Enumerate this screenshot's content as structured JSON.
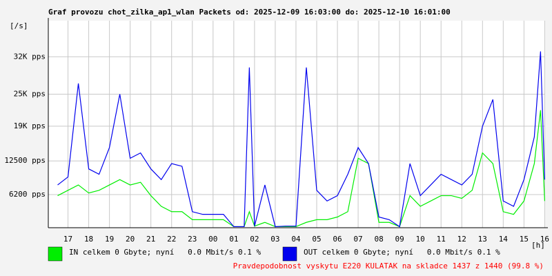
{
  "chart_data": {
    "type": "line",
    "title": "Graf provozu chot_zilka_ap1_wlan Packets od: 2025-12-09 16:03:00 do: 2025-12-10 16:01:00",
    "y_unit": "[/s]",
    "x_unit": "[h]",
    "footer": "Pravdepodobnost vyskytu E220 KULATAK na skladce 1437 z 1440 (99.8 %)",
    "grid": true,
    "xlim": [
      16.05,
      40.02
    ],
    "xticks": [
      17,
      18,
      19,
      20,
      21,
      22,
      23,
      {
        "value": 24,
        "label": "00"
      },
      {
        "value": 25,
        "label": "01"
      },
      {
        "value": 26,
        "label": "02"
      },
      {
        "value": 27,
        "label": "03"
      },
      {
        "value": 28,
        "label": "04"
      },
      {
        "value": 29,
        "label": "05"
      },
      {
        "value": 30,
        "label": "06"
      },
      {
        "value": 31,
        "label": "07"
      },
      {
        "value": 32,
        "label": "08"
      },
      {
        "value": 33,
        "label": "09"
      },
      {
        "value": 34,
        "label": "10"
      },
      {
        "value": 35,
        "label": "11"
      },
      {
        "value": 36,
        "label": "12"
      },
      {
        "value": 37,
        "label": "13"
      },
      {
        "value": 38,
        "label": "14"
      },
      {
        "value": 39,
        "label": "15"
      },
      {
        "value": 40,
        "label": "16"
      }
    ],
    "ylim": [
      0,
      38750
    ],
    "yticks": [
      {
        "value": 6200,
        "label": "6200 pps"
      },
      {
        "value": 12500,
        "label": "12500 pps"
      },
      {
        "value": 19000,
        "label": "19K pps"
      },
      {
        "value": 25000,
        "label": "25K pps"
      },
      {
        "value": 32000,
        "label": "32K pps"
      }
    ],
    "x": [
      16.5,
      17,
      17.5,
      18,
      18.5,
      19,
      19.5,
      20,
      20.5,
      21,
      21.5,
      22,
      22.5,
      23,
      23.5,
      24,
      24.5,
      25,
      25.5,
      25.75,
      26,
      26.5,
      27,
      27.5,
      28,
      28.5,
      29,
      29.5,
      30,
      30.5,
      31,
      31.5,
      32,
      32.5,
      33,
      33.5,
      34,
      34.5,
      35,
      35.5,
      36,
      36.5,
      37,
      37.5,
      38,
      38.5,
      39,
      39.5,
      39.8,
      40
    ],
    "series": [
      {
        "name": "IN celkem 0 Gbyte; nyní   0.0 Mbit/s 0.1 %",
        "color": "#00ee00",
        "values": [
          6000,
          7000,
          8000,
          6500,
          7000,
          8000,
          9000,
          8000,
          8500,
          6000,
          4000,
          3000,
          3000,
          1500,
          1500,
          1500,
          1500,
          200,
          200,
          3000,
          300,
          1000,
          200,
          200,
          200,
          1000,
          1500,
          1500,
          2000,
          3000,
          13000,
          12000,
          1000,
          1000,
          200,
          6000,
          4000,
          5000,
          6000,
          6000,
          5500,
          7000,
          14000,
          12000,
          3000,
          2500,
          5000,
          12000,
          22000,
          5000
        ]
      },
      {
        "name": "OUT celkem 0 Gbyte; nyní   0.0 Mbit/s 0.1 %",
        "color": "#0000ee",
        "values": [
          8000,
          9500,
          27000,
          11000,
          10000,
          15000,
          25000,
          13000,
          14000,
          11000,
          9000,
          12000,
          11500,
          3000,
          2500,
          2500,
          2500,
          200,
          200,
          30000,
          300,
          8000,
          200,
          300,
          300,
          30000,
          7000,
          5000,
          6000,
          10000,
          15000,
          12000,
          2000,
          1500,
          200,
          12000,
          6000,
          8000,
          10000,
          9000,
          8000,
          10000,
          19000,
          24000,
          5000,
          4000,
          9000,
          17000,
          33000,
          9000
        ]
      }
    ]
  }
}
